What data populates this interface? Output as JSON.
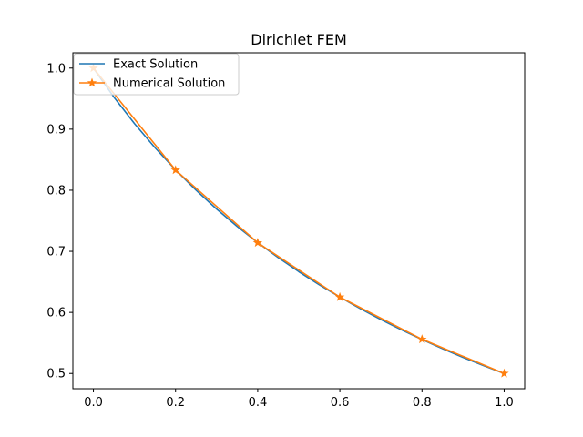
{
  "chart_data": {
    "type": "line",
    "title": "Dirichlet FEM",
    "xlabel": "",
    "ylabel": "",
    "xlim": [
      -0.05,
      1.05
    ],
    "ylim": [
      0.475,
      1.025
    ],
    "x_ticks": [
      "0.0",
      "0.2",
      "0.4",
      "0.6",
      "0.8",
      "1.0"
    ],
    "y_ticks": [
      "0.5",
      "0.6",
      "0.7",
      "0.8",
      "0.9",
      "1.0"
    ],
    "grid": false,
    "legend_position": "top-left",
    "series": [
      {
        "name": "Exact Solution",
        "color": "#1f77b4",
        "marker": "none",
        "x": [
          0.0,
          0.05,
          0.1,
          0.15,
          0.2,
          0.25,
          0.3,
          0.35,
          0.4,
          0.45,
          0.5,
          0.55,
          0.6,
          0.65,
          0.7,
          0.75,
          0.8,
          0.85,
          0.9,
          0.95,
          1.0
        ],
        "y": [
          1.0,
          0.9524,
          0.9091,
          0.8696,
          0.8333,
          0.8,
          0.7692,
          0.7407,
          0.7143,
          0.6897,
          0.6667,
          0.6452,
          0.625,
          0.6061,
          0.5882,
          0.5714,
          0.5556,
          0.5405,
          0.5263,
          0.5128,
          0.5
        ]
      },
      {
        "name": "Numerical Solution",
        "color": "#ff7f0e",
        "marker": "star",
        "x": [
          0.0,
          0.2,
          0.4,
          0.6,
          0.8,
          1.0
        ],
        "y": [
          1.0,
          0.833,
          0.714,
          0.625,
          0.556,
          0.5
        ]
      }
    ]
  }
}
